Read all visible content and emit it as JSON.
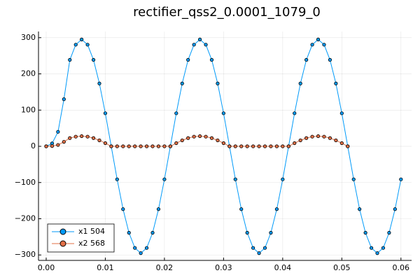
{
  "chart_data": {
    "type": "line",
    "title": "rectifier_qss2_0.0001_1079_0",
    "x": [
      0,
      0.001,
      0.002,
      0.003,
      0.004,
      0.005,
      0.006,
      0.007,
      0.008,
      0.009,
      0.01,
      0.011,
      0.012,
      0.013,
      0.014,
      0.015,
      0.016,
      0.017,
      0.018,
      0.019,
      0.02,
      0.021,
      0.022,
      0.023,
      0.024,
      0.025,
      0.026,
      0.027,
      0.028,
      0.029,
      0.03,
      0.031,
      0.032,
      0.033,
      0.034,
      0.035,
      0.036,
      0.037,
      0.038,
      0.039,
      0.04,
      0.041,
      0.042,
      0.043,
      0.044,
      0.045,
      0.046,
      0.047,
      0.048,
      0.049,
      0.05,
      0.051,
      0.052,
      0.053,
      0.054,
      0.055,
      0.056,
      0.057,
      0.058,
      0.059,
      0.06
    ],
    "series": [
      {
        "name": "x1 504",
        "color": "#009af9",
        "values": [
          0,
          8,
          40,
          130,
          238.7,
          280.6,
          295,
          280.6,
          238.7,
          173.5,
          91.2,
          0,
          -91.2,
          -173.5,
          -238.7,
          -280.6,
          -295,
          -280.6,
          -238.7,
          -173.5,
          -91.2,
          0,
          91.2,
          173.5,
          238.7,
          280.6,
          295,
          280.6,
          238.7,
          173.5,
          91.2,
          0,
          -91.2,
          -173.5,
          -238.7,
          -280.6,
          -295,
          -280.6,
          -238.7,
          -173.5,
          -91.2,
          0,
          91.2,
          173.5,
          238.7,
          280.6,
          295,
          280.6,
          238.7,
          173.5,
          91.2,
          0,
          -91.2,
          -173.5,
          -238.7,
          -280.6,
          -295,
          -280.6,
          -238.7,
          -173.5,
          -91.2
        ]
      },
      {
        "name": "x2 568",
        "color": "#e26f46",
        "values": [
          0,
          0.8,
          3.8,
          12.4,
          22.7,
          26.7,
          28,
          26.7,
          22.7,
          16.5,
          8.7,
          0,
          0,
          0,
          0,
          0,
          0,
          0,
          0,
          0,
          0,
          0,
          8.7,
          16.5,
          22.7,
          26.7,
          28,
          26.7,
          22.7,
          16.5,
          8.7,
          0,
          0,
          0,
          0,
          0,
          0,
          0,
          0,
          0,
          0,
          0,
          8.7,
          16.5,
          22.7,
          26.7,
          28,
          26.7,
          22.7,
          16.5,
          8.7,
          0,
          null,
          null,
          null,
          null,
          null,
          null,
          null,
          null,
          null
        ]
      }
    ],
    "xlim": [
      -0.0013,
      0.0618
    ],
    "ylim": [
      -315,
      317
    ],
    "xticks": [
      {
        "value": 0,
        "label": "0.00"
      },
      {
        "value": 0.01,
        "label": "0.01"
      },
      {
        "value": 0.02,
        "label": "0.02"
      },
      {
        "value": 0.03,
        "label": "0.03"
      },
      {
        "value": 0.04,
        "label": "0.04"
      },
      {
        "value": 0.05,
        "label": "0.05"
      },
      {
        "value": 0.06,
        "label": "0.06"
      }
    ],
    "yticks": [
      {
        "value": -300,
        "label": "−300"
      },
      {
        "value": -200,
        "label": "−200"
      },
      {
        "value": -100,
        "label": "−100"
      },
      0,
      100,
      200,
      300
    ],
    "grid": true,
    "legend": "bottom-left",
    "markers": true
  }
}
